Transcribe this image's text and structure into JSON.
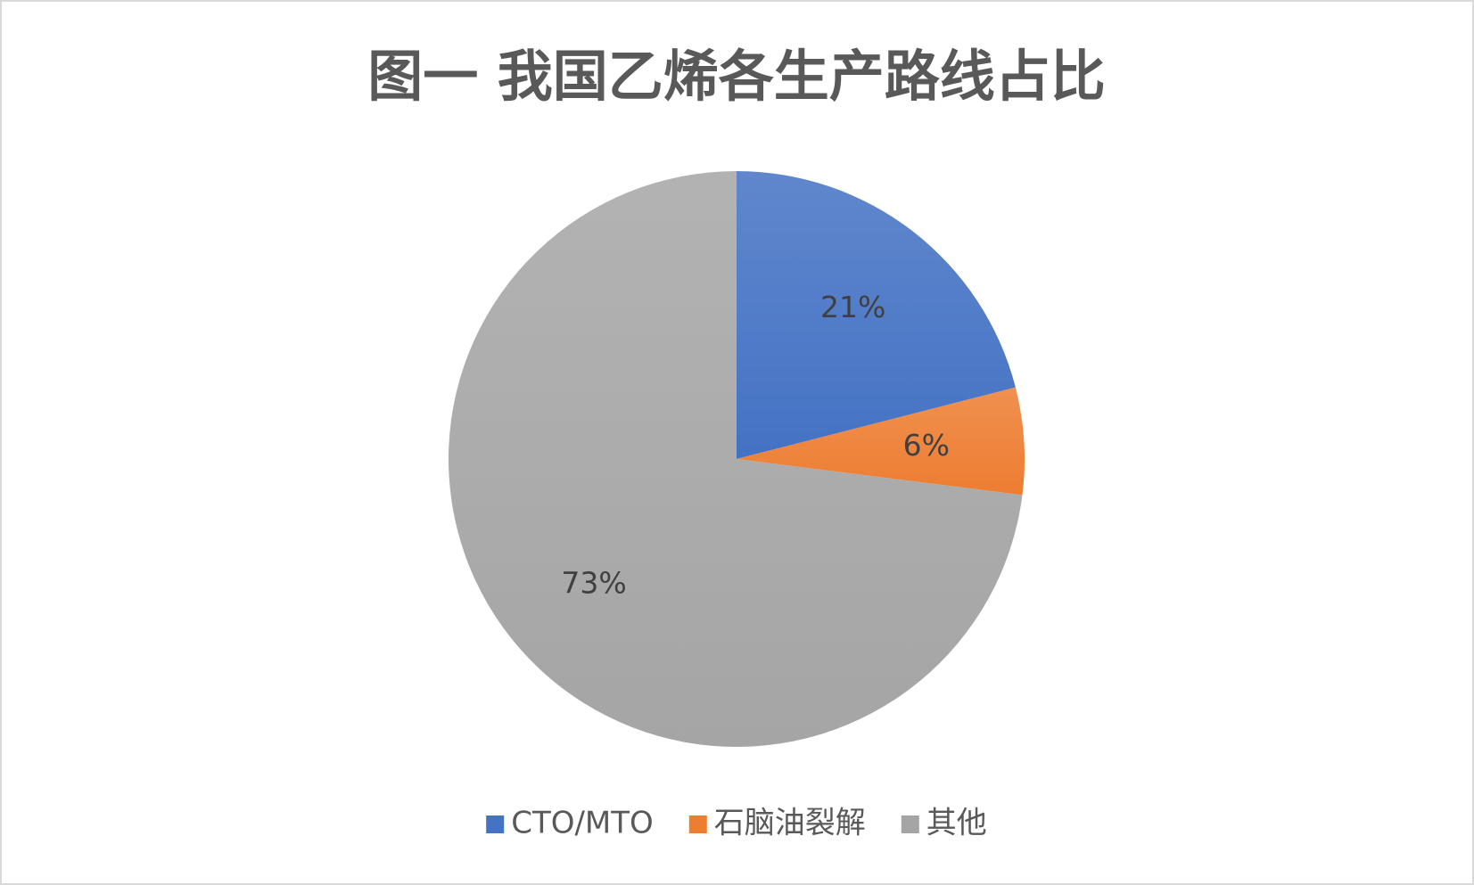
{
  "chart_data": {
    "type": "pie",
    "title": "图一 我国乙烯各生产路线占比",
    "categories": [
      "CTO/MTO",
      "石脑油裂解",
      "其他"
    ],
    "values": [
      21,
      6,
      73
    ],
    "value_labels": [
      "21%",
      "6%",
      "73%"
    ],
    "colors": [
      "#4472c4",
      "#ed7d31",
      "#a5a5a5"
    ],
    "legend": "bottom"
  }
}
